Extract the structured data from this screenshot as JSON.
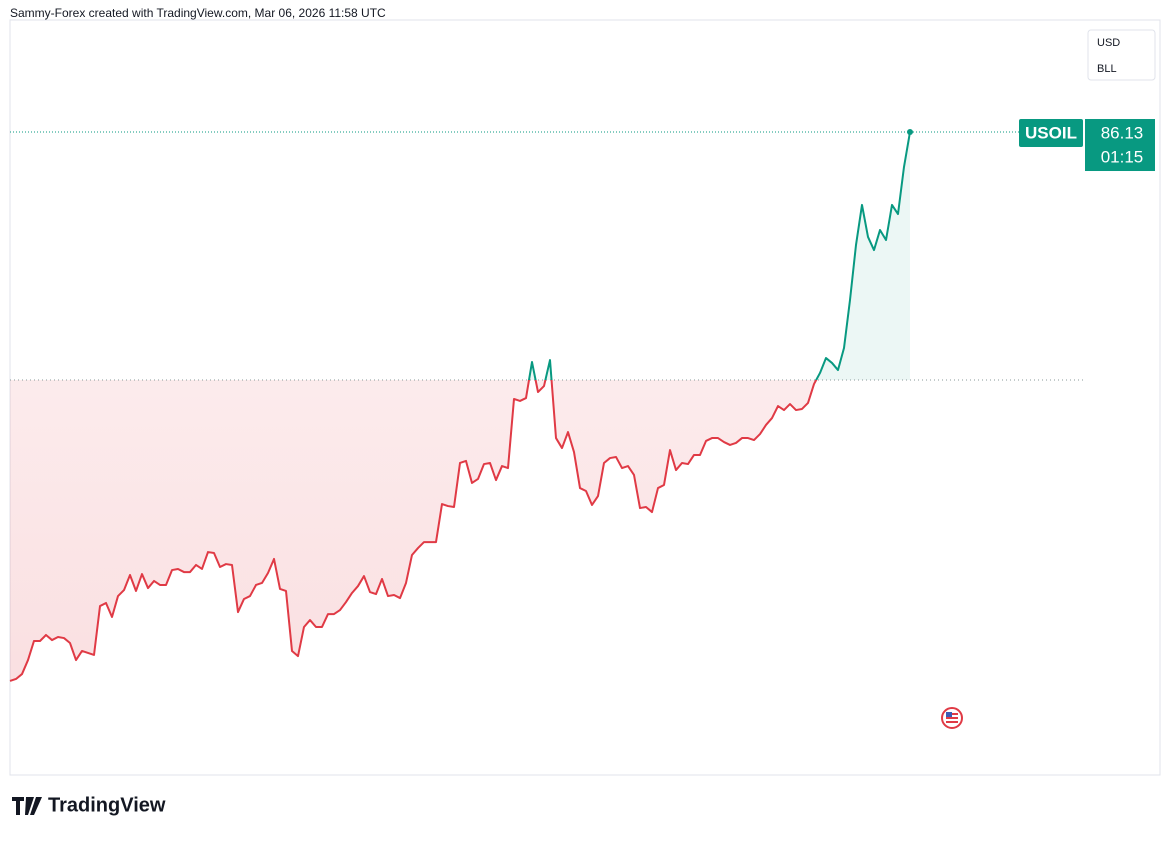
{
  "header": {
    "credit": "Sammy-Forex created with TradingView.com, Mar 06, 2026 11:58 UTC"
  },
  "legend_box": {
    "items": [
      "USD",
      "BLL"
    ]
  },
  "footer": {
    "brand": "TradingView"
  },
  "chart_data": {
    "type": "baseline",
    "symbol": "USOIL",
    "countdown": "01:15",
    "baseline": 72.49,
    "ylim": [
      50.77,
      92.29
    ],
    "up_color": "#089981",
    "down_color": "#e03a45",
    "values": [
      55.94,
      56.05,
      56.32,
      57.09,
      58.14,
      58.14,
      58.47,
      58.19,
      58.36,
      58.3,
      58.03,
      57.09,
      57.59,
      57.48,
      57.37,
      60.06,
      60.23,
      59.46,
      60.61,
      60.94,
      61.77,
      60.89,
      61.82,
      61.05,
      61.44,
      61.22,
      61.22,
      62.04,
      62.1,
      61.93,
      61.93,
      62.32,
      62.1,
      63.03,
      62.98,
      62.21,
      62.37,
      62.32,
      59.73,
      60.45,
      60.61,
      61.22,
      61.33,
      61.88,
      62.65,
      61.0,
      60.89,
      57.59,
      57.31,
      58.91,
      59.29,
      58.91,
      58.91,
      59.62,
      59.62,
      59.84,
      60.28,
      60.78,
      61.16,
      61.71,
      60.83,
      60.72,
      61.55,
      60.61,
      60.67,
      60.5,
      61.33,
      62.87,
      63.25,
      63.58,
      63.58,
      63.58,
      65.67,
      65.56,
      65.51,
      67.93,
      68.04,
      66.83,
      67.05,
      67.87,
      67.93,
      66.99,
      67.76,
      67.65,
      71.45,
      71.34,
      71.5,
      73.48,
      71.83,
      72.16,
      73.59,
      69.3,
      68.75,
      69.63,
      68.53,
      66.55,
      66.39,
      65.62,
      66.11,
      67.93,
      68.2,
      68.26,
      67.65,
      67.76,
      67.27,
      65.45,
      65.51,
      65.23,
      66.55,
      66.72,
      68.64,
      67.54,
      67.93,
      67.87,
      68.37,
      68.37,
      69.14,
      69.3,
      69.3,
      69.08,
      68.92,
      69.03,
      69.3,
      69.3,
      69.19,
      69.52,
      70.02,
      70.4,
      71.06,
      70.84,
      71.17,
      70.84,
      70.9,
      71.23,
      72.27,
      72.88,
      73.7,
      73.43,
      73.04,
      74.25,
      76.89,
      79.92,
      82.12,
      80.36,
      79.64,
      80.74,
      80.19,
      82.12,
      81.62,
      84.21,
      86.13
    ]
  }
}
